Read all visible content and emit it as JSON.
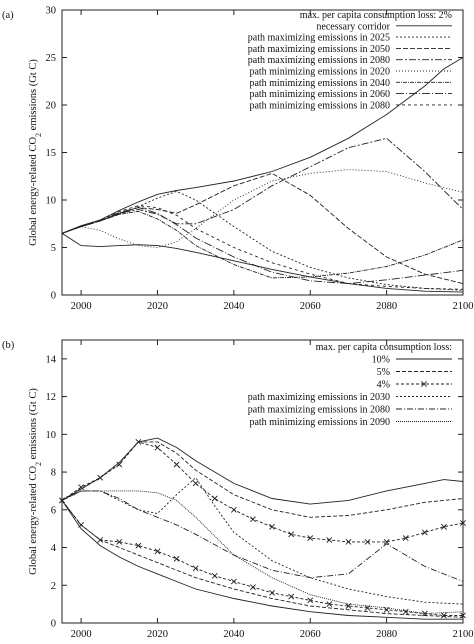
{
  "chart_data": [
    {
      "type": "line",
      "panel_label": "(a)",
      "ylabel": "Global energy-related CO2 emissions (Gt C)",
      "ylabel_main": "Global energy-related CO",
      "ylabel_sub": "2",
      "ylabel_tail": " emissions (Gt C)",
      "xlim": [
        1995,
        2100
      ],
      "ylim": [
        0,
        30
      ],
      "xticks": [
        2000,
        2020,
        2040,
        2060,
        2080,
        2100
      ],
      "yticks": [
        0,
        5,
        10,
        15,
        20,
        25,
        30
      ],
      "legend_title": "max. per capita consumption loss: 2%",
      "legend_position": "top-right",
      "series": [
        {
          "name": "necessary corridor",
          "dash": "",
          "marker": "",
          "x": [
            1995,
            2000,
            2005,
            2010,
            2015,
            2020,
            2025,
            2030,
            2040,
            2050,
            2060,
            2070,
            2080,
            2090,
            2095,
            2100
          ],
          "y": [
            6.5,
            7.3,
            7.9,
            8.9,
            9.8,
            10.6,
            11.0,
            11.3,
            12.0,
            13.0,
            14.5,
            16.5,
            19.0,
            22.0,
            23.8,
            25.0
          ]
        },
        {
          "name": "",
          "dash": "",
          "marker": "",
          "x": [
            1995,
            2000,
            2005,
            2010,
            2015,
            2020,
            2025,
            2030,
            2040,
            2050,
            2060,
            2070,
            2080,
            2090,
            2100
          ],
          "y": [
            6.5,
            5.2,
            5.1,
            5.2,
            5.3,
            5.2,
            4.9,
            4.5,
            3.6,
            2.7,
            1.9,
            1.2,
            0.7,
            0.4,
            0.3
          ]
        },
        {
          "name": "path maximizing emissions in 2025",
          "dash": "2,2",
          "marker": "",
          "x": [
            1995,
            2000,
            2005,
            2010,
            2015,
            2020,
            2025,
            2030,
            2040,
            2050,
            2060,
            2070,
            2080,
            2090,
            2100
          ],
          "y": [
            6.5,
            7.2,
            7.8,
            8.5,
            9.3,
            10.2,
            10.9,
            10.0,
            7.2,
            4.6,
            2.9,
            1.8,
            1.1,
            0.7,
            0.5
          ]
        },
        {
          "name": "path maximizing emissions in 2050",
          "dash": "5,2",
          "marker": "",
          "x": [
            1995,
            2000,
            2005,
            2010,
            2015,
            2020,
            2025,
            2030,
            2040,
            2050,
            2060,
            2070,
            2080,
            2090,
            2100
          ],
          "y": [
            6.5,
            7.2,
            7.8,
            8.6,
            9.2,
            9.0,
            8.6,
            9.5,
            11.5,
            12.8,
            10.5,
            7.0,
            4.0,
            2.2,
            1.2
          ]
        },
        {
          "name": "path maximizing emissions in 2080",
          "dash": "7,2,2,2",
          "marker": "",
          "x": [
            1995,
            2000,
            2005,
            2010,
            2015,
            2020,
            2025,
            2030,
            2040,
            2050,
            2060,
            2070,
            2080,
            2090,
            2100
          ],
          "y": [
            6.5,
            7.2,
            7.8,
            8.6,
            9.0,
            8.5,
            7.5,
            7.5,
            9.0,
            11.5,
            13.5,
            15.5,
            16.5,
            13.0,
            9.0
          ]
        },
        {
          "name": "path minimizing emissions in 2020",
          "dash": "1,2",
          "marker": "",
          "x": [
            1995,
            2000,
            2005,
            2010,
            2015,
            2020,
            2025,
            2030,
            2040,
            2050,
            2060,
            2070,
            2080,
            2090,
            2100
          ],
          "y": [
            6.5,
            7.2,
            6.8,
            5.9,
            5.2,
            5.0,
            5.6,
            7.0,
            10.0,
            12.0,
            12.8,
            13.2,
            13.0,
            11.8,
            10.8
          ]
        },
        {
          "name": "path minimizing emissions in 2040",
          "dash": "4,1,1,1",
          "marker": "",
          "x": [
            1995,
            2000,
            2005,
            2010,
            2015,
            2020,
            2025,
            2030,
            2040,
            2050,
            2060,
            2070,
            2080,
            2090,
            2100
          ],
          "y": [
            6.5,
            7.2,
            7.8,
            8.5,
            8.8,
            8.0,
            6.8,
            5.2,
            3.2,
            1.8,
            1.9,
            2.3,
            3.0,
            4.2,
            5.8
          ]
        },
        {
          "name": "path minimizing emissions in 2060",
          "dash": "8,2,1,2",
          "marker": "",
          "x": [
            1995,
            2000,
            2005,
            2010,
            2015,
            2020,
            2025,
            2030,
            2040,
            2050,
            2060,
            2070,
            2080,
            2090,
            2100
          ],
          "y": [
            6.5,
            7.2,
            7.8,
            8.7,
            9.2,
            8.6,
            7.4,
            6.0,
            4.0,
            2.4,
            1.5,
            1.2,
            1.6,
            2.1,
            2.6
          ]
        },
        {
          "name": "path minimizing emissions in 2080",
          "dash": "3,3",
          "marker": "",
          "x": [
            1995,
            2000,
            2005,
            2010,
            2015,
            2020,
            2025,
            2030,
            2040,
            2050,
            2060,
            2070,
            2080,
            2090,
            2100
          ],
          "y": [
            6.5,
            7.2,
            7.8,
            8.8,
            9.4,
            9.2,
            8.4,
            7.0,
            5.0,
            3.4,
            2.2,
            1.2,
            0.9,
            0.7,
            0.6
          ]
        }
      ]
    },
    {
      "type": "line",
      "panel_label": "(b)",
      "ylabel": "Global energy-related CO2 emissions (Gt C)",
      "ylabel_main": "Global energy-related CO",
      "ylabel_sub": "2",
      "ylabel_tail": " emissions (Gt C)",
      "xlim": [
        1995,
        2100
      ],
      "ylim": [
        0,
        15
      ],
      "xticks": [
        2000,
        2020,
        2040,
        2060,
        2080,
        2100
      ],
      "yticks": [
        0,
        2,
        4,
        6,
        8,
        10,
        12,
        14
      ],
      "legend_title": "max. per capita consumption loss:",
      "legend_position": "top-right",
      "series": [
        {
          "name": "10%",
          "dash": "",
          "marker": "",
          "x": [
            1995,
            2000,
            2005,
            2010,
            2015,
            2020,
            2025,
            2030,
            2040,
            2050,
            2060,
            2070,
            2080,
            2090,
            2095,
            2100
          ],
          "y": [
            6.5,
            7.1,
            7.7,
            8.5,
            9.6,
            9.8,
            9.3,
            8.6,
            7.4,
            6.6,
            6.3,
            6.5,
            7.0,
            7.4,
            7.6,
            7.5
          ]
        },
        {
          "name": "",
          "dash": "",
          "marker": "",
          "x": [
            1995,
            2000,
            2005,
            2010,
            2015,
            2020,
            2025,
            2030,
            2040,
            2050,
            2060,
            2070,
            2080,
            2090,
            2100
          ],
          "y": [
            6.5,
            5.0,
            4.1,
            3.5,
            3.0,
            2.6,
            2.2,
            1.8,
            1.3,
            0.9,
            0.6,
            0.4,
            0.3,
            0.2,
            0.2
          ]
        },
        {
          "name": "5%",
          "dash": "4,2",
          "marker": "",
          "x": [
            1995,
            2000,
            2005,
            2010,
            2015,
            2020,
            2025,
            2030,
            2040,
            2050,
            2060,
            2070,
            2080,
            2090,
            2100
          ],
          "y": [
            6.5,
            5.2,
            4.4,
            4.0,
            3.6,
            3.2,
            2.8,
            2.4,
            1.8,
            1.3,
            0.9,
            0.7,
            0.5,
            0.4,
            0.3
          ]
        },
        {
          "name": "",
          "dash": "4,2",
          "marker": "",
          "x": [
            1995,
            2000,
            2005,
            2010,
            2015,
            2020,
            2025,
            2030,
            2040,
            2050,
            2060,
            2070,
            2080,
            2090,
            2100
          ],
          "y": [
            6.5,
            7.1,
            7.7,
            8.5,
            9.6,
            9.6,
            9.0,
            8.1,
            6.8,
            6.0,
            5.6,
            5.7,
            6.0,
            6.4,
            6.6
          ]
        },
        {
          "name": "4%",
          "dash": "3,2",
          "marker": "x",
          "x": [
            1995,
            2000,
            2005,
            2010,
            2015,
            2020,
            2025,
            2030,
            2035,
            2040,
            2045,
            2050,
            2055,
            2060,
            2065,
            2070,
            2075,
            2080,
            2085,
            2090,
            2095,
            2100
          ],
          "y": [
            6.5,
            7.2,
            7.7,
            8.4,
            9.6,
            9.3,
            8.4,
            7.4,
            6.6,
            6.0,
            5.5,
            5.1,
            4.7,
            4.5,
            4.4,
            4.3,
            4.3,
            4.3,
            4.5,
            4.8,
            5.1,
            5.3
          ]
        },
        {
          "name": "",
          "dash": "3,2",
          "marker": "x",
          "x": [
            1995,
            2000,
            2005,
            2010,
            2015,
            2020,
            2025,
            2030,
            2035,
            2040,
            2045,
            2050,
            2055,
            2060,
            2065,
            2070,
            2075,
            2080,
            2085,
            2090,
            2095,
            2100
          ],
          "y": [
            6.5,
            5.2,
            4.4,
            4.3,
            4.1,
            3.8,
            3.4,
            2.9,
            2.5,
            2.2,
            1.9,
            1.6,
            1.4,
            1.2,
            1.0,
            0.9,
            0.8,
            0.7,
            0.6,
            0.5,
            0.4,
            0.4
          ]
        },
        {
          "name": "path maximizing emissions in 2030",
          "dash": "2,2",
          "marker": "",
          "x": [
            1995,
            2000,
            2005,
            2010,
            2015,
            2020,
            2025,
            2030,
            2035,
            2040,
            2050,
            2060,
            2070,
            2080,
            2090,
            2100
          ],
          "y": [
            6.5,
            7.0,
            7.0,
            6.5,
            6.0,
            5.8,
            6.8,
            7.7,
            6.2,
            4.8,
            3.3,
            2.4,
            1.8,
            1.4,
            1.1,
            1.0
          ]
        },
        {
          "name": "path maximizing emissions in 2080",
          "dash": "6,2,1,2",
          "marker": "",
          "x": [
            1995,
            2000,
            2005,
            2010,
            2015,
            2020,
            2025,
            2030,
            2040,
            2050,
            2060,
            2070,
            2080,
            2090,
            2100
          ],
          "y": [
            6.5,
            7.0,
            7.0,
            6.6,
            6.0,
            5.6,
            5.2,
            4.7,
            3.6,
            2.8,
            2.4,
            2.6,
            4.2,
            3.0,
            2.2
          ]
        },
        {
          "name": "path minimizing emissions in 2090",
          "dash": "1,1",
          "marker": "",
          "x": [
            1995,
            2000,
            2005,
            2010,
            2015,
            2020,
            2025,
            2030,
            2040,
            2050,
            2060,
            2070,
            2080,
            2090,
            2100
          ],
          "y": [
            6.5,
            7.0,
            7.0,
            7.0,
            7.0,
            6.9,
            6.5,
            5.6,
            3.6,
            2.4,
            1.5,
            1.0,
            0.8,
            0.5,
            0.6
          ]
        }
      ]
    }
  ]
}
